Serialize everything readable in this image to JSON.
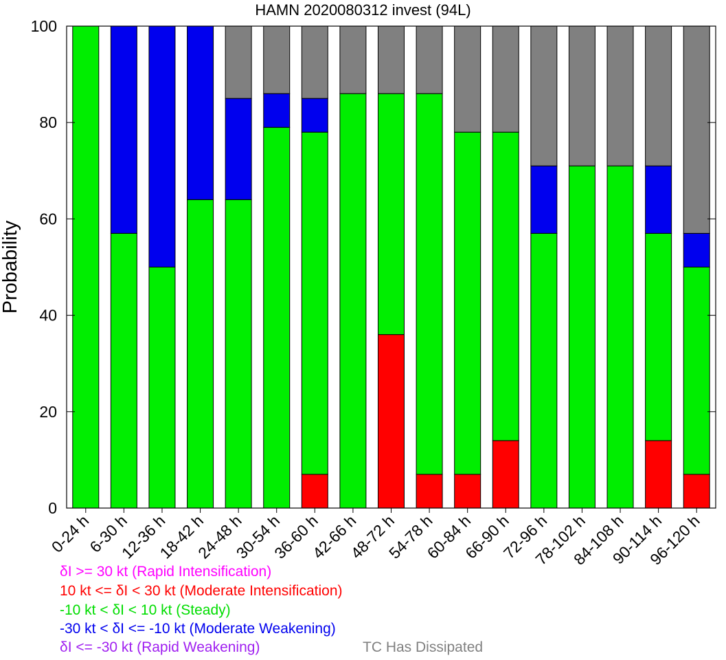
{
  "chart_data": {
    "type": "bar",
    "stacked": true,
    "title": "HAMN 2020080312 invest (94L)",
    "xlabel": "",
    "ylabel": "Probability",
    "ylim": [
      0,
      100
    ],
    "yticks": [
      0,
      20,
      40,
      60,
      80,
      100
    ],
    "categories": [
      "0-24 h",
      "6-30 h",
      "12-36 h",
      "18-42 h",
      "24-48 h",
      "30-54 h",
      "36-60 h",
      "42-66 h",
      "48-72 h",
      "54-78 h",
      "60-84 h",
      "66-90 h",
      "72-96 h",
      "78-102 h",
      "84-108 h",
      "90-114 h",
      "96-120 h"
    ],
    "series": [
      {
        "name": "δI >= 30 kt (Rapid Intensification)",
        "color": "#ff00ff",
        "values": [
          0,
          0,
          0,
          0,
          0,
          0,
          0,
          0,
          0,
          0,
          0,
          0,
          0,
          0,
          0,
          0,
          0
        ]
      },
      {
        "name": "10 kt <= δI < 30 kt (Moderate Intensification)",
        "color": "#ff0000",
        "values": [
          0,
          0,
          0,
          0,
          0,
          0,
          7,
          0,
          36,
          7,
          7,
          14,
          0,
          0,
          0,
          14,
          7
        ]
      },
      {
        "name": "-10 kt < δI < 10 kt (Steady)",
        "color": "#00ee00",
        "values": [
          100,
          57,
          50,
          64,
          64,
          79,
          71,
          86,
          50,
          79,
          71,
          64,
          57,
          71,
          71,
          43,
          43
        ]
      },
      {
        "name": "-30 kt < δI <= -10 kt (Moderate Weakening)",
        "color": "#0000ee",
        "values": [
          0,
          43,
          50,
          36,
          21,
          7,
          7,
          0,
          0,
          0,
          0,
          0,
          14,
          0,
          0,
          14,
          7
        ]
      },
      {
        "name": "δI <= -30 kt (Rapid Weakening)",
        "color": "#a020f0",
        "values": [
          0,
          0,
          0,
          0,
          0,
          0,
          0,
          0,
          0,
          0,
          0,
          0,
          0,
          0,
          0,
          0,
          0
        ]
      },
      {
        "name": "TC Has Dissipated",
        "color": "#808080",
        "values": [
          0,
          0,
          0,
          0,
          15,
          14,
          15,
          14,
          14,
          14,
          22,
          22,
          29,
          29,
          29,
          29,
          43
        ]
      }
    ]
  },
  "legend": [
    {
      "text": "δI >= 30 kt (Rapid Intensification)",
      "color": "#ff00ff"
    },
    {
      "text": "10 kt <= δI < 30 kt (Moderate Intensification)",
      "color": "#ff0000"
    },
    {
      "text": "-10 kt < δI < 10 kt (Steady)",
      "color": "#00dd00"
    },
    {
      "text": "-30 kt < δI <= -10 kt (Moderate Weakening)",
      "color": "#0000ee"
    },
    {
      "text": "δI <= -30 kt (Rapid Weakening)",
      "color": "#a020f0"
    },
    {
      "text": "TC Has Dissipated",
      "color": "#808080"
    }
  ]
}
